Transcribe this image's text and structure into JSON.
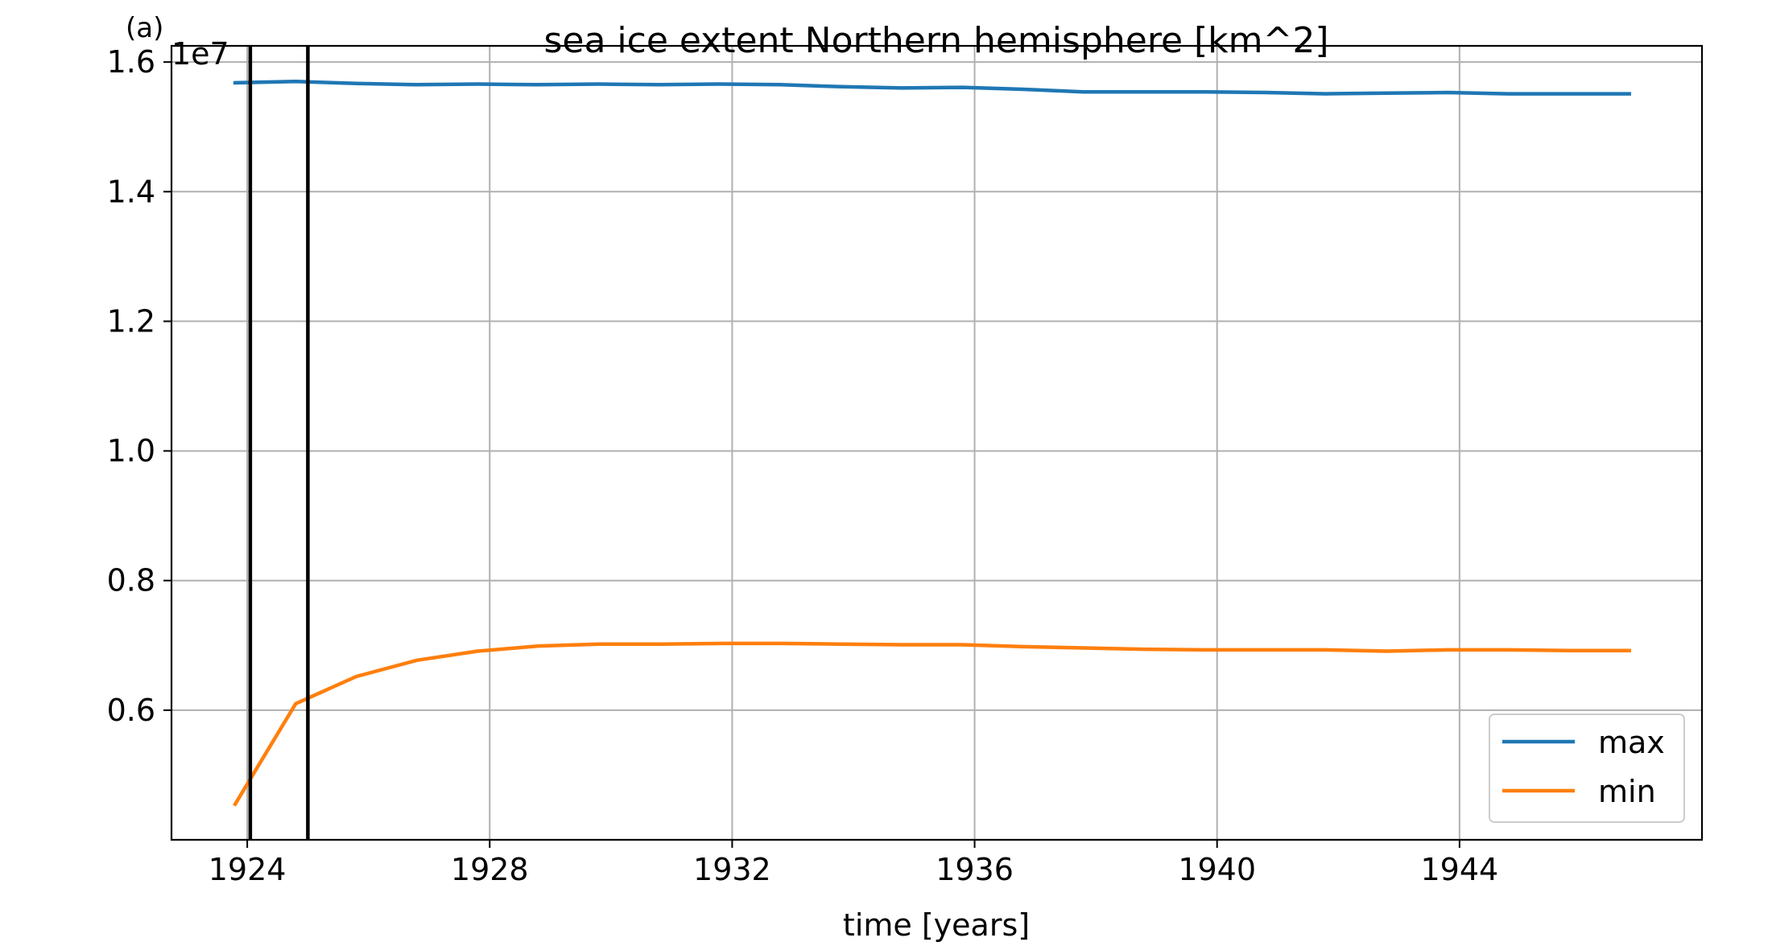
{
  "figure": {
    "panel_label": "(a)",
    "axis_offset_label": "1e7"
  },
  "chart_data": {
    "type": "line",
    "title": "sea ice extent Northern hemisphere [km^2]",
    "xlabel": "time [years]",
    "ylabel": "",
    "xlim": [
      1922.75,
      1948.0
    ],
    "ylim": [
      0.4,
      1.625
    ],
    "y_scale_factor": 10000000,
    "xticks": [
      1924,
      1928,
      1932,
      1936,
      1940,
      1944
    ],
    "xtick_labels": [
      "1924",
      "1928",
      "1932",
      "1936",
      "1940",
      "1944"
    ],
    "yticks": [
      0.6,
      0.8,
      1.0,
      1.2,
      1.4,
      1.6
    ],
    "ytick_labels": [
      "0.6",
      "0.8",
      "1.0",
      "1.2",
      "1.4",
      "1.6"
    ],
    "grid": true,
    "legend_position": "lower-right",
    "vlines": [
      1924.05,
      1925.0
    ],
    "x": [
      1923.8,
      1924.8,
      1925.8,
      1926.8,
      1927.8,
      1928.8,
      1929.8,
      1930.8,
      1931.8,
      1932.8,
      1933.8,
      1934.8,
      1935.8,
      1936.8,
      1937.8,
      1938.8,
      1939.8,
      1940.8,
      1941.8,
      1942.8,
      1943.8,
      1944.8,
      1945.8,
      1946.8
    ],
    "series": [
      {
        "name": "max",
        "color": "#1f77b4",
        "values": [
          1.568,
          1.57,
          1.567,
          1.565,
          1.566,
          1.565,
          1.566,
          1.565,
          1.566,
          1.565,
          1.562,
          1.56,
          1.561,
          1.558,
          1.554,
          1.554,
          1.554,
          1.553,
          1.551,
          1.552,
          1.553,
          1.551,
          1.551,
          1.551
        ]
      },
      {
        "name": "min",
        "color": "#ff7f0e",
        "values": [
          0.455,
          0.61,
          0.652,
          0.677,
          0.691,
          0.699,
          0.702,
          0.702,
          0.703,
          0.703,
          0.702,
          0.701,
          0.701,
          0.698,
          0.696,
          0.694,
          0.693,
          0.693,
          0.693,
          0.691,
          0.693,
          0.693,
          0.692,
          0.692
        ]
      }
    ]
  }
}
